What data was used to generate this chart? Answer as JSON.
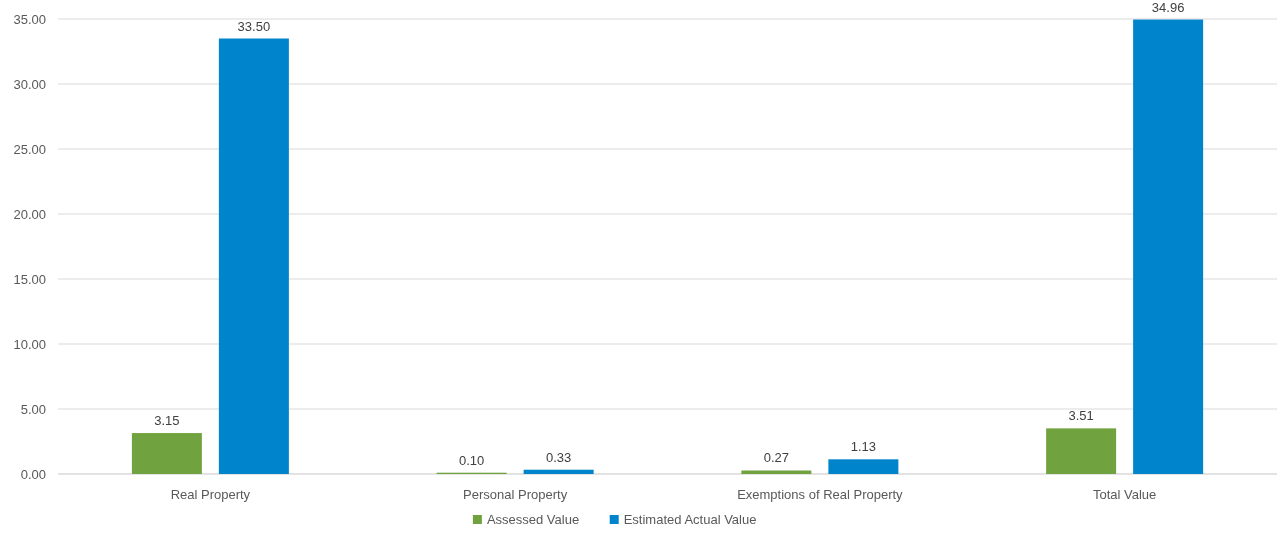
{
  "chart_data": {
    "type": "bar",
    "categories": [
      "Real Property",
      "Personal Property",
      "Exemptions of Real Property",
      "Total Value"
    ],
    "series": [
      {
        "name": "Assessed Value",
        "color": "#70a33f",
        "values": [
          3.15,
          0.1,
          0.27,
          3.51
        ],
        "value_labels": [
          "3.15",
          "0.10",
          "0.27",
          "3.51"
        ]
      },
      {
        "name": "Estimated Actual Value",
        "color": "#0085cc",
        "values": [
          33.5,
          0.33,
          1.13,
          34.96
        ],
        "value_labels": [
          "33.50",
          "0.33",
          "1.13",
          "34.96"
        ]
      }
    ],
    "ylim": [
      0,
      35
    ],
    "yticks": [
      {
        "value": 0,
        "label": "0.00"
      },
      {
        "value": 5,
        "label": "5.00"
      },
      {
        "value": 10,
        "label": "10.00"
      },
      {
        "value": 15,
        "label": "15.00"
      },
      {
        "value": 20,
        "label": "20.00"
      },
      {
        "value": 25,
        "label": "25.00"
      },
      {
        "value": 30,
        "label": "30.00"
      },
      {
        "value": 35,
        "label": "35.00"
      }
    ],
    "grid": "y",
    "legend": "bottom"
  }
}
